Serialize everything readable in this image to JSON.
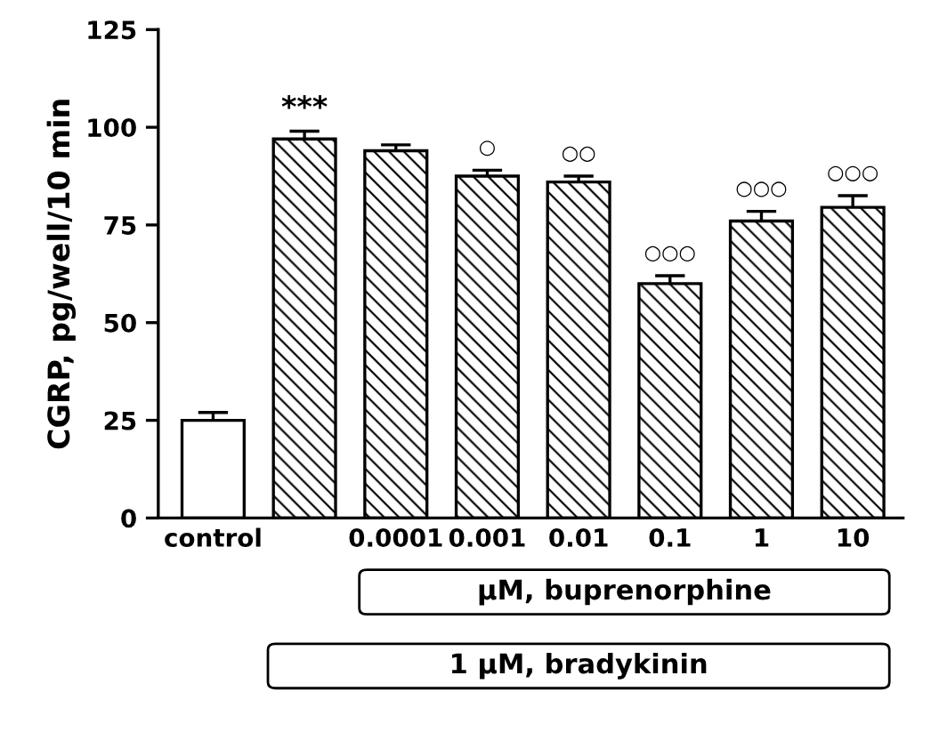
{
  "chart_data": {
    "type": "bar",
    "ylabel": "CGRP, pg/well/10 min",
    "categories": [
      "control",
      null,
      "0.0001",
      "0.001",
      "0.01",
      "0.1",
      "1",
      "10"
    ],
    "series": [
      {
        "color": "#000000",
        "values": [
          25,
          null,
          null,
          null,
          null,
          null,
          null,
          null
        ],
        "errors": [
          2,
          null,
          null,
          null,
          null,
          null,
          null,
          null
        ]
      },
      {
        "color": "#000000",
        "values": [
          null,
          97,
          94,
          87.5,
          86,
          60,
          76,
          79.5
        ],
        "errors": [
          null,
          2,
          1.5,
          1.5,
          1.5,
          2,
          2.5,
          3
        ]
      }
    ],
    "ylim": [
      0,
      125
    ],
    "yticks": [
      0,
      25,
      50,
      75,
      100,
      125
    ],
    "grid": false,
    "annotations": [
      {
        "text": "***",
        "y": 97
      },
      {
        "text": "○",
        "x": "0.001",
        "y": 87.5
      },
      {
        "text": "○○",
        "x": "0.01",
        "y": 86
      },
      {
        "text": "○○○",
        "x": "0.1",
        "y": 60
      },
      {
        "text": "○○○",
        "x": "1",
        "y": 76
      },
      {
        "text": "○○○",
        "x": "10",
        "y": 79.5
      },
      "μM, buprenorphine",
      "1 μM, bradykinin"
    ]
  }
}
